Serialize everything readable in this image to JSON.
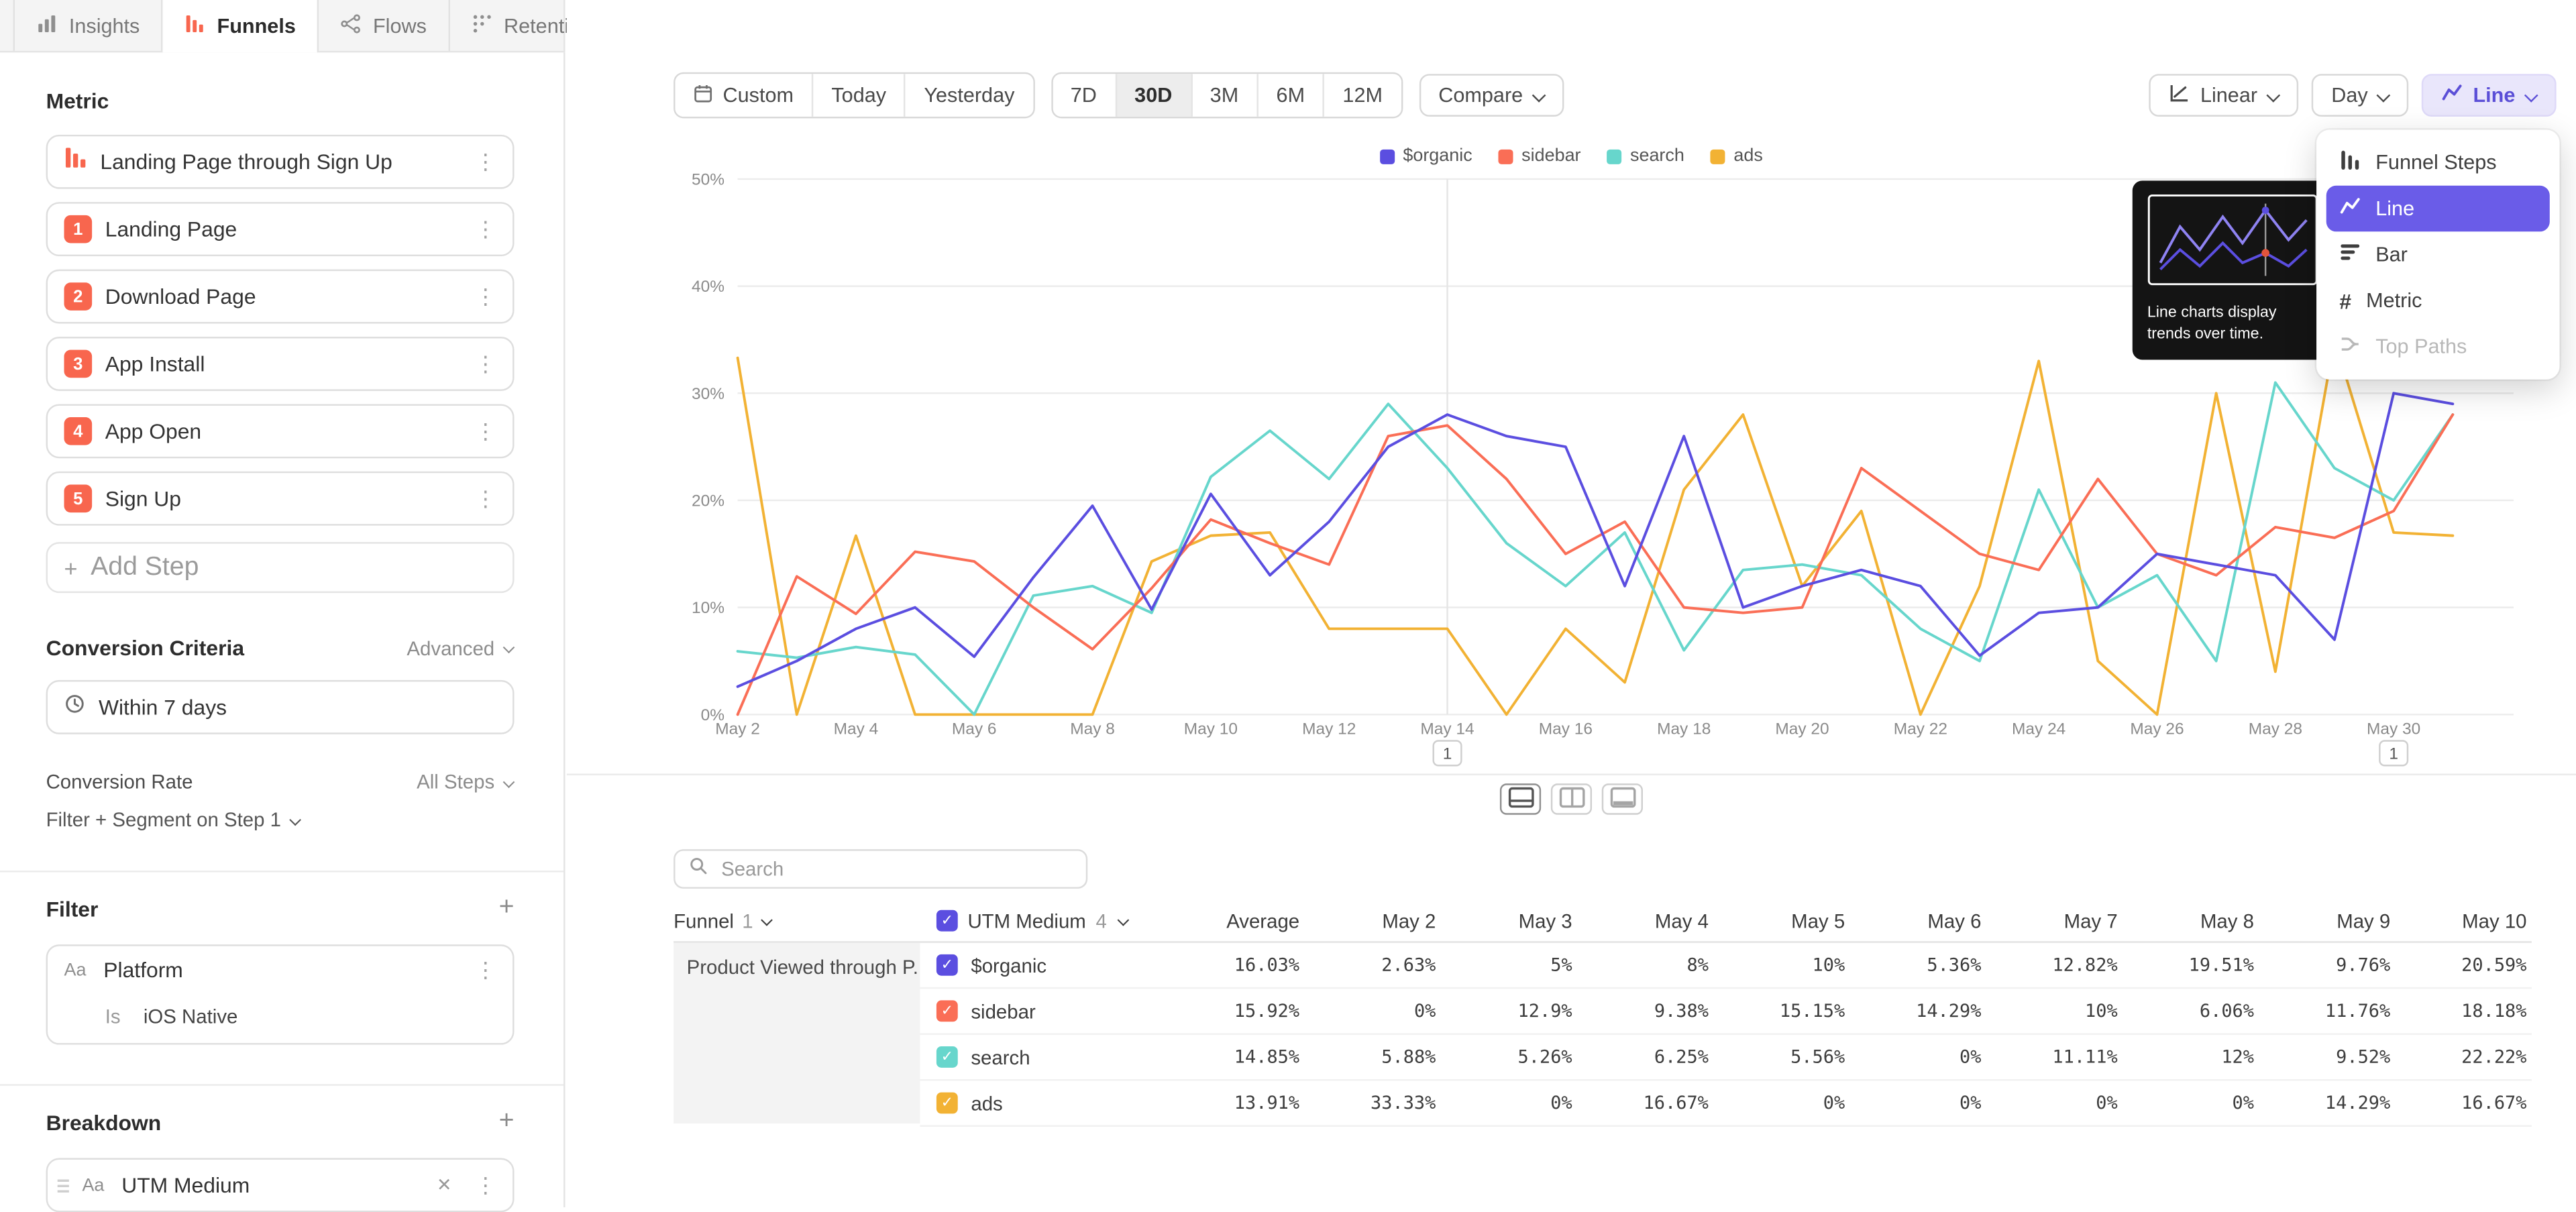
{
  "icons": {
    "kebab": "⋮",
    "close": "✕",
    "plus": "+",
    "check": "✓"
  },
  "colors": {
    "accent_purple": "#5b4ee0",
    "menu_selected": "#6a5ce8",
    "step_badge": "#f8664e",
    "series_red": "#fa6e56",
    "series_teal": "#67d6cc",
    "series_yellow": "#f2b234"
  },
  "tabs": [
    {
      "label": "Insights"
    },
    {
      "label": "Funnels",
      "active": true
    },
    {
      "label": "Flows"
    },
    {
      "label": "Retention"
    }
  ],
  "sidebar": {
    "metric_heading": "Metric",
    "funnel_title": "Landing Page through Sign Up",
    "steps": [
      {
        "num": "1",
        "label": "Landing Page"
      },
      {
        "num": "2",
        "label": "Download Page"
      },
      {
        "num": "3",
        "label": "App Install"
      },
      {
        "num": "4",
        "label": "App Open"
      },
      {
        "num": "5",
        "label": "Sign Up"
      }
    ],
    "add_step_label": "Add Step",
    "conversion": {
      "heading": "Conversion Criteria",
      "advanced_label": "Advanced",
      "window_label": "Within 7 days",
      "rate_label": "Conversion Rate",
      "rate_value": "All Steps",
      "filter_segment_label": "Filter + Segment on Step 1"
    },
    "filter": {
      "heading": "Filter",
      "type_badge": "Aa",
      "property": "Platform",
      "condition_label": "Is",
      "condition_value": "iOS Native"
    },
    "breakdown": {
      "heading": "Breakdown",
      "type_badge": "Aa",
      "property": "UTM Medium"
    }
  },
  "toolbar": {
    "custom_label": "Custom",
    "today_label": "Today",
    "yesterday_label": "Yesterday",
    "ranges": [
      "7D",
      "30D",
      "3M",
      "6M",
      "12M"
    ],
    "active_range": "30D",
    "compare_label": "Compare",
    "linear_label": "Linear",
    "day_label": "Day",
    "line_label": "Line"
  },
  "chart_menu": {
    "items": [
      {
        "label": "Funnel Steps",
        "icon": "funnel-steps-icon"
      },
      {
        "label": "Line",
        "icon": "line-chart-icon",
        "selected": true
      },
      {
        "label": "Bar",
        "icon": "bar-chart-icon"
      },
      {
        "label": "Metric",
        "icon": "metric-icon"
      },
      {
        "label": "Top Paths",
        "icon": "top-paths-icon",
        "disabled": true
      }
    ],
    "tooltip": "Line charts display trends over time."
  },
  "chart_data": {
    "type": "line",
    "title": "",
    "xlabel": "",
    "ylabel": "",
    "ylim": [
      0,
      50
    ],
    "grid": true,
    "legend_position": "top",
    "yticks": [
      {
        "value": 0,
        "label": "0%"
      },
      {
        "value": 10,
        "label": "10%"
      },
      {
        "value": 20,
        "label": "20%"
      },
      {
        "value": 30,
        "label": "30%"
      },
      {
        "value": 40,
        "label": "40%"
      },
      {
        "value": 50,
        "label": "50%"
      }
    ],
    "x": [
      "May 2",
      "May 3",
      "May 4",
      "May 5",
      "May 6",
      "May 7",
      "May 8",
      "May 9",
      "May 10",
      "May 11",
      "May 12",
      "May 13",
      "May 14",
      "May 15",
      "May 16",
      "May 17",
      "May 18",
      "May 19",
      "May 20",
      "May 21",
      "May 22",
      "May 23",
      "May 24",
      "May 25",
      "May 26",
      "May 27",
      "May 28",
      "May 29",
      "May 30",
      "May 31"
    ],
    "annotations": [
      {
        "x": "May 14",
        "label": "1",
        "vline": true
      },
      {
        "x": "May 30",
        "label": "1",
        "vline": false
      }
    ],
    "series": [
      {
        "name": "$organic",
        "color": "#5b4ee0",
        "values": [
          2.6,
          5,
          8,
          10,
          5.4,
          12.8,
          19.5,
          9.8,
          20.6,
          13,
          18,
          25,
          28,
          26,
          25,
          12,
          26,
          10,
          12,
          13.5,
          12,
          5.5,
          9.5,
          10,
          15,
          14,
          13,
          7,
          30,
          29
        ]
      },
      {
        "name": "sidebar",
        "color": "#fa6e56",
        "values": [
          0,
          12.9,
          9.4,
          15.2,
          14.3,
          10,
          6.1,
          11.8,
          18.2,
          16,
          14,
          26,
          27,
          22,
          15,
          18,
          10,
          9.5,
          10,
          23,
          19,
          15,
          13.5,
          22,
          15,
          13,
          17.5,
          16.5,
          19,
          28
        ]
      },
      {
        "name": "search",
        "color": "#67d6cc",
        "values": [
          5.9,
          5.3,
          6.3,
          5.6,
          0,
          11.1,
          12,
          9.5,
          22.2,
          26.5,
          22,
          29,
          23,
          16,
          12,
          17,
          6,
          13.5,
          14,
          13,
          8,
          5,
          21,
          10,
          13,
          5,
          31,
          23,
          20,
          28
        ]
      },
      {
        "name": "ads",
        "color": "#f2b234",
        "values": [
          33.3,
          0,
          16.7,
          0,
          0,
          0,
          0,
          14.3,
          16.7,
          17,
          8,
          8,
          8,
          0,
          8,
          3,
          21,
          28,
          12,
          19,
          0,
          12,
          33,
          5,
          0,
          30,
          4,
          35,
          17,
          16.7
        ]
      }
    ]
  },
  "search": {
    "placeholder": "Search"
  },
  "table": {
    "funnel_col": {
      "label": "Funnel",
      "count": "1"
    },
    "breakdown_col": {
      "label": "UTM Medium",
      "count": "4"
    },
    "columns": [
      "Average",
      "May 2",
      "May 3",
      "May 4",
      "May 5",
      "May 6",
      "May 7",
      "May 8",
      "May 9",
      "May 10"
    ],
    "group_label": "Product Viewed through P...",
    "rows": [
      {
        "name": "$organic",
        "color": "#5b4ee0",
        "values": [
          "16.03%",
          "2.63%",
          "5%",
          "8%",
          "10%",
          "5.36%",
          "12.82%",
          "19.51%",
          "9.76%",
          "20.59%"
        ]
      },
      {
        "name": "sidebar",
        "color": "#fa6e56",
        "values": [
          "15.92%",
          "0%",
          "12.9%",
          "9.38%",
          "15.15%",
          "14.29%",
          "10%",
          "6.06%",
          "11.76%",
          "18.18%"
        ]
      },
      {
        "name": "search",
        "color": "#67d6cc",
        "values": [
          "14.85%",
          "5.88%",
          "5.26%",
          "6.25%",
          "5.56%",
          "0%",
          "11.11%",
          "12%",
          "9.52%",
          "22.22%"
        ]
      },
      {
        "name": "ads",
        "color": "#f2b234",
        "values": [
          "13.91%",
          "33.33%",
          "0%",
          "16.67%",
          "0%",
          "0%",
          "0%",
          "0%",
          "14.29%",
          "16.67%"
        ]
      }
    ]
  }
}
